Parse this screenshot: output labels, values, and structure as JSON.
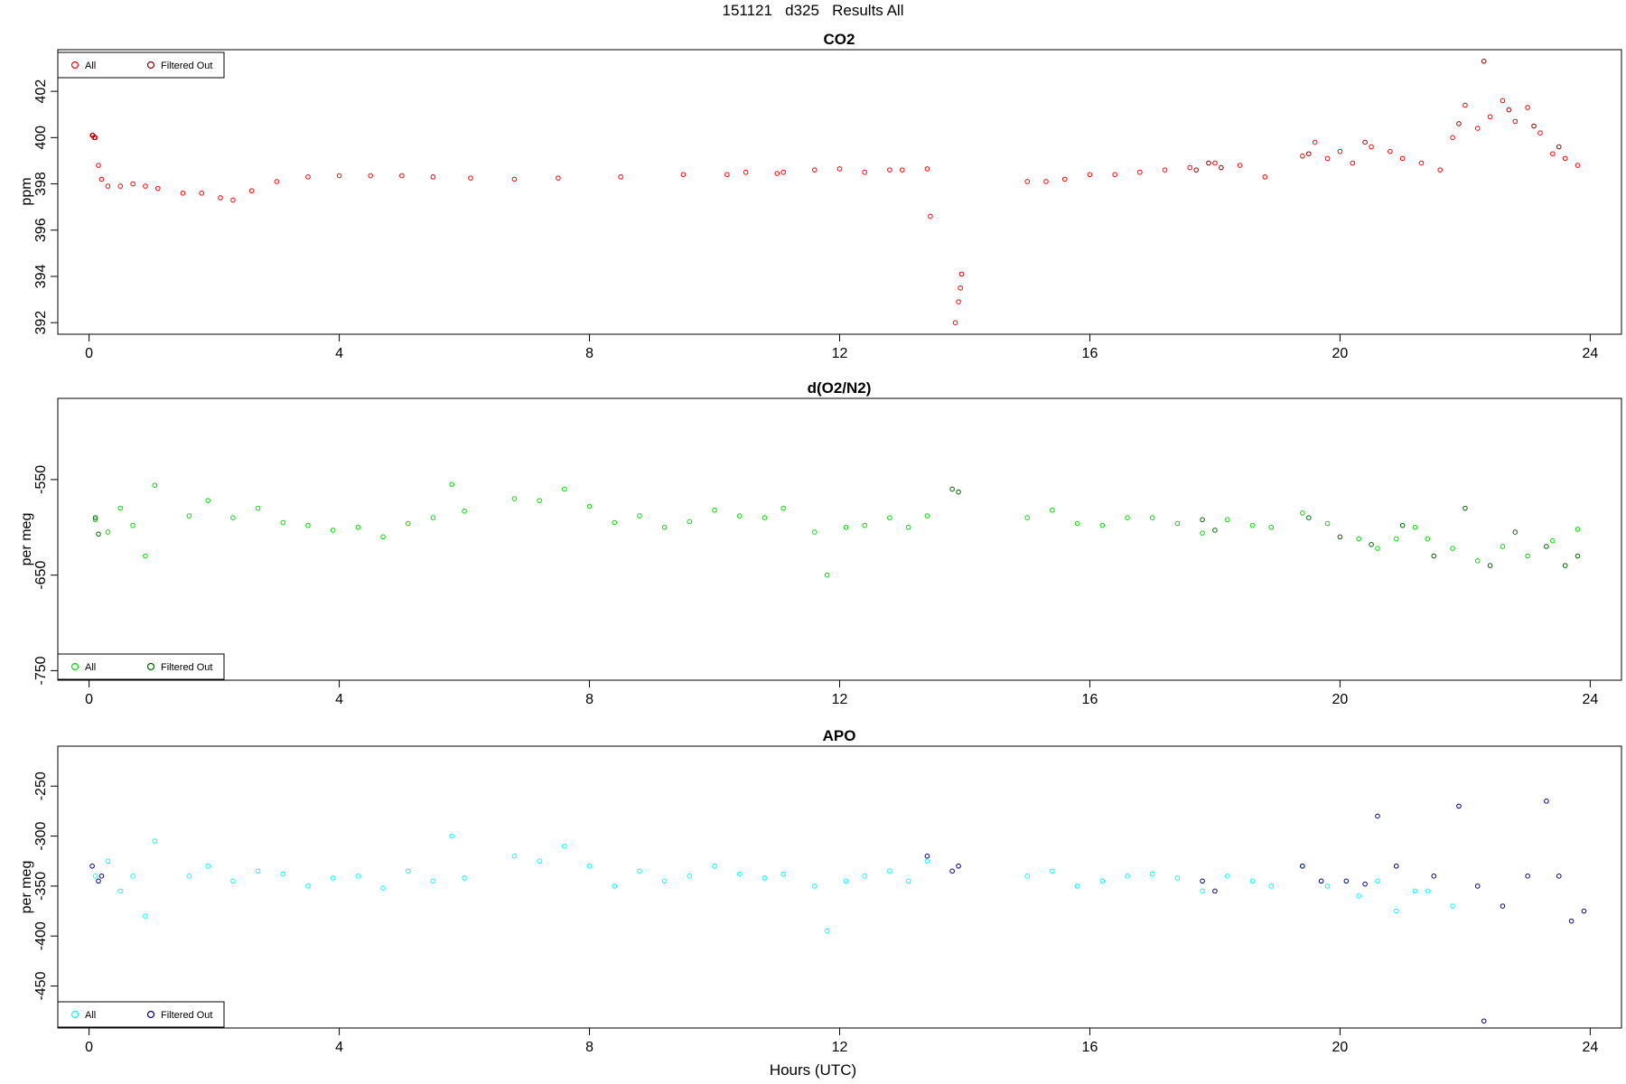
{
  "title": "151121   d325   Results All",
  "xlabel": "Hours (UTC)",
  "chart_data": [
    {
      "type": "scatter",
      "title": "CO2",
      "ylabel": "ppm",
      "xlim": [
        -0.5,
        24.5
      ],
      "ylim": [
        391.5,
        403.8
      ],
      "xticks": [
        0,
        4,
        8,
        12,
        16,
        20,
        24
      ],
      "yticks": [
        392,
        394,
        396,
        398,
        400,
        402
      ],
      "legend_position": "top-left",
      "series": [
        {
          "name": "All",
          "color": "#ff0000",
          "x": [
            0.05,
            0.08,
            0.15,
            0.2,
            0.3,
            0.5,
            0.7,
            0.9,
            1.1,
            1.5,
            1.8,
            2.1,
            2.3,
            2.6,
            3.0,
            3.5,
            4.0,
            4.5,
            5.0,
            5.5,
            6.1,
            6.8,
            7.5,
            8.5,
            9.5,
            10.2,
            10.5,
            11.0,
            11.1,
            11.6,
            12.0,
            12.4,
            12.8,
            13.0,
            13.4,
            13.45,
            13.85,
            13.9,
            13.93,
            13.95,
            15.0,
            15.3,
            15.6,
            16.0,
            16.4,
            16.8,
            17.2,
            17.6,
            18.0,
            18.4,
            18.8,
            19.4,
            19.6,
            19.8,
            20.0,
            20.2,
            20.5,
            20.8,
            21.0,
            21.3,
            21.6,
            21.8,
            22.0,
            22.2,
            22.4,
            22.6,
            22.8,
            23.0,
            23.2,
            23.4,
            23.6,
            23.8
          ],
          "y": [
            400.1,
            400.0,
            398.8,
            398.2,
            397.9,
            397.9,
            398.0,
            397.9,
            397.8,
            397.6,
            397.6,
            397.4,
            397.3,
            397.7,
            398.1,
            398.3,
            398.35,
            398.35,
            398.35,
            398.3,
            398.25,
            398.2,
            398.25,
            398.3,
            398.4,
            398.4,
            398.5,
            398.45,
            398.5,
            398.6,
            398.65,
            398.5,
            398.6,
            398.6,
            398.65,
            396.6,
            392.0,
            392.9,
            393.5,
            394.1,
            398.1,
            398.1,
            398.2,
            398.4,
            398.4,
            398.5,
            398.6,
            398.7,
            398.9,
            398.8,
            398.3,
            399.2,
            399.8,
            399.1,
            399.4,
            398.9,
            399.6,
            399.4,
            399.1,
            398.9,
            398.6,
            400.0,
            401.4,
            400.4,
            400.9,
            401.6,
            400.7,
            401.3,
            400.2,
            399.3,
            399.1,
            398.8
          ]
        },
        {
          "name": "Filtered Out",
          "color": "#8b0000",
          "x": [
            0.06,
            0.1,
            17.7,
            17.9,
            18.1,
            19.5,
            20.4,
            21.9,
            22.3,
            22.7,
            23.1,
            23.5
          ],
          "y": [
            400.1,
            400.0,
            398.6,
            398.9,
            398.7,
            399.3,
            399.8,
            400.6,
            403.3,
            401.2,
            400.5,
            399.6
          ]
        }
      ]
    },
    {
      "type": "scatter",
      "title": "d(O2/N2)",
      "ylabel": "per meg",
      "xlim": [
        -0.5,
        24.5
      ],
      "ylim": [
        -760,
        -465
      ],
      "xticks": [
        0,
        4,
        8,
        12,
        16,
        20,
        24
      ],
      "yticks": [
        -750,
        -650,
        -550
      ],
      "legend_position": "bottom-left",
      "series": [
        {
          "name": "All",
          "color": "#00dd00",
          "x": [
            0.1,
            0.3,
            0.5,
            0.7,
            0.9,
            1.05,
            1.6,
            1.9,
            2.3,
            2.7,
            3.1,
            3.5,
            3.9,
            4.3,
            4.7,
            5.1,
            5.5,
            5.8,
            6.0,
            6.8,
            7.2,
            7.6,
            8.0,
            8.4,
            8.8,
            9.2,
            9.6,
            10.0,
            10.4,
            10.8,
            11.1,
            11.6,
            11.8,
            12.1,
            12.4,
            12.8,
            13.1,
            13.4,
            15.0,
            15.4,
            15.8,
            16.2,
            16.6,
            17.0,
            17.4,
            17.8,
            18.2,
            18.6,
            18.9,
            19.4,
            19.8,
            20.3,
            20.6,
            20.9,
            21.2,
            21.4,
            21.8,
            22.2,
            22.6,
            23.0,
            23.4,
            23.8
          ],
          "y": [
            -592,
            -605,
            -580,
            -598,
            -630,
            -556,
            -588,
            -572,
            -590,
            -580,
            -595,
            -598,
            -603,
            -600,
            -610,
            -596,
            -590,
            -555,
            -583,
            -570,
            -572,
            -560,
            -578,
            -595,
            -588,
            -600,
            -594,
            -582,
            -588,
            -590,
            -580,
            -605,
            -650,
            -600,
            -598,
            -590,
            -600,
            -588,
            -590,
            -582,
            -596,
            -598,
            -590,
            -590,
            -596,
            -606,
            -592,
            -598,
            -600,
            -585,
            -596,
            -612,
            -622,
            -612,
            -600,
            -612,
            -622,
            -635,
            -620,
            -630,
            -614,
            -602
          ]
        },
        {
          "name": "Filtered Out",
          "color": "#006400",
          "x": [
            0.1,
            0.15,
            13.8,
            13.9,
            17.8,
            18.0,
            19.5,
            20.0,
            20.5,
            21.0,
            21.5,
            22.0,
            22.4,
            22.8,
            23.3,
            23.6,
            23.8
          ],
          "y": [
            -590,
            -607,
            -560,
            -563,
            -592,
            -603,
            -590,
            -610,
            -618,
            -598,
            -630,
            -580,
            -640,
            -605,
            -620,
            -640,
            -630
          ]
        }
      ]
    },
    {
      "type": "scatter",
      "title": "APO",
      "ylabel": "per meg",
      "xlim": [
        -0.5,
        24.5
      ],
      "ylim": [
        -492,
        -210
      ],
      "xticks": [
        0,
        4,
        8,
        12,
        16,
        20,
        24
      ],
      "yticks": [
        -450,
        -400,
        -350,
        -300,
        -250
      ],
      "legend_position": "bottom-left",
      "series": [
        {
          "name": "All",
          "color": "#00ffff",
          "x": [
            0.1,
            0.3,
            0.5,
            0.7,
            0.9,
            1.05,
            1.6,
            1.9,
            2.3,
            2.7,
            3.1,
            3.5,
            3.9,
            4.3,
            4.7,
            5.1,
            5.5,
            5.8,
            6.0,
            6.8,
            7.2,
            7.6,
            8.0,
            8.4,
            8.8,
            9.2,
            9.6,
            10.0,
            10.4,
            10.8,
            11.1,
            11.6,
            11.8,
            12.1,
            12.4,
            12.8,
            13.1,
            13.4,
            15.0,
            15.4,
            15.8,
            16.2,
            16.6,
            17.0,
            17.4,
            17.8,
            18.2,
            18.6,
            18.9,
            19.4,
            19.8,
            20.3,
            20.6,
            20.9,
            21.2,
            21.4,
            21.8
          ],
          "y": [
            -340,
            -325,
            -355,
            -340,
            -380,
            -305,
            -340,
            -330,
            -345,
            -335,
            -338,
            -350,
            -342,
            -340,
            -352,
            -335,
            -345,
            -300,
            -342,
            -320,
            -325,
            -310,
            -330,
            -350,
            -335,
            -345,
            -340,
            -330,
            -338,
            -342,
            -338,
            -350,
            -395,
            -345,
            -340,
            -335,
            -345,
            -325,
            -340,
            -335,
            -350,
            -345,
            -340,
            -338,
            -342,
            -355,
            -340,
            -345,
            -350,
            -330,
            -350,
            -360,
            -345,
            -375,
            -355,
            -355,
            -370
          ]
        },
        {
          "name": "Filtered Out",
          "color": "#00008b",
          "x": [
            0.05,
            0.15,
            0.2,
            13.4,
            13.8,
            13.9,
            17.8,
            18.0,
            19.4,
            19.7,
            20.1,
            20.4,
            20.6,
            20.9,
            21.5,
            21.9,
            22.2,
            22.3,
            22.6,
            23.0,
            23.3,
            23.5,
            23.7,
            23.9
          ],
          "y": [
            -330,
            -345,
            -340,
            -320,
            -335,
            -330,
            -345,
            -355,
            -330,
            -345,
            -345,
            -348,
            -280,
            -330,
            -340,
            -270,
            -350,
            -485,
            -370,
            -340,
            -265,
            -340,
            -385,
            -375
          ]
        }
      ]
    }
  ]
}
